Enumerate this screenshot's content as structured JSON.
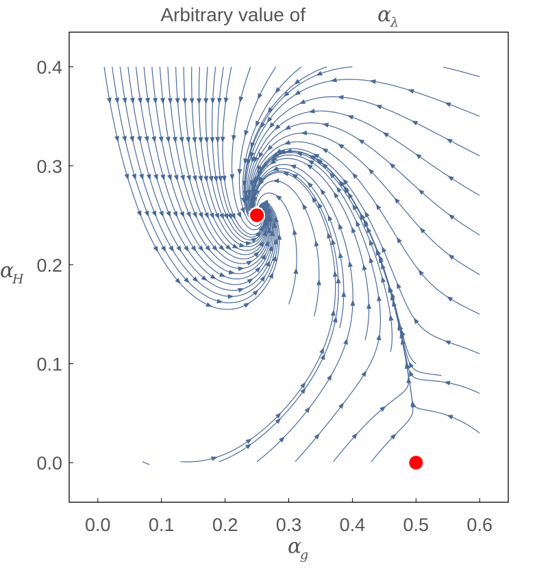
{
  "chart_data": {
    "type": "streamplot",
    "title": {
      "text": "Arbitrary value of ",
      "symbol": "α",
      "subscript": "λ"
    },
    "xlabel": {
      "symbol": "α",
      "subscript": "g"
    },
    "ylabel": {
      "symbol": "α",
      "subscript": "H"
    },
    "xlim": [
      -0.045,
      0.645
    ],
    "ylim": [
      -0.04,
      0.435
    ],
    "xticks": [
      "0.0",
      "0.1",
      "0.2",
      "0.3",
      "0.4",
      "0.5",
      "0.6"
    ],
    "yticks": [
      "0.0",
      "0.1",
      "0.2",
      "0.3",
      "0.4"
    ],
    "fixed_points": [
      {
        "x": 0.25,
        "y": 0.25
      },
      {
        "x": 0.5,
        "y": 0.0
      }
    ],
    "colors": {
      "stream": "#4a6a97",
      "fixed_point": "#ff0000",
      "frame": "#000000",
      "text": "#555555"
    }
  }
}
